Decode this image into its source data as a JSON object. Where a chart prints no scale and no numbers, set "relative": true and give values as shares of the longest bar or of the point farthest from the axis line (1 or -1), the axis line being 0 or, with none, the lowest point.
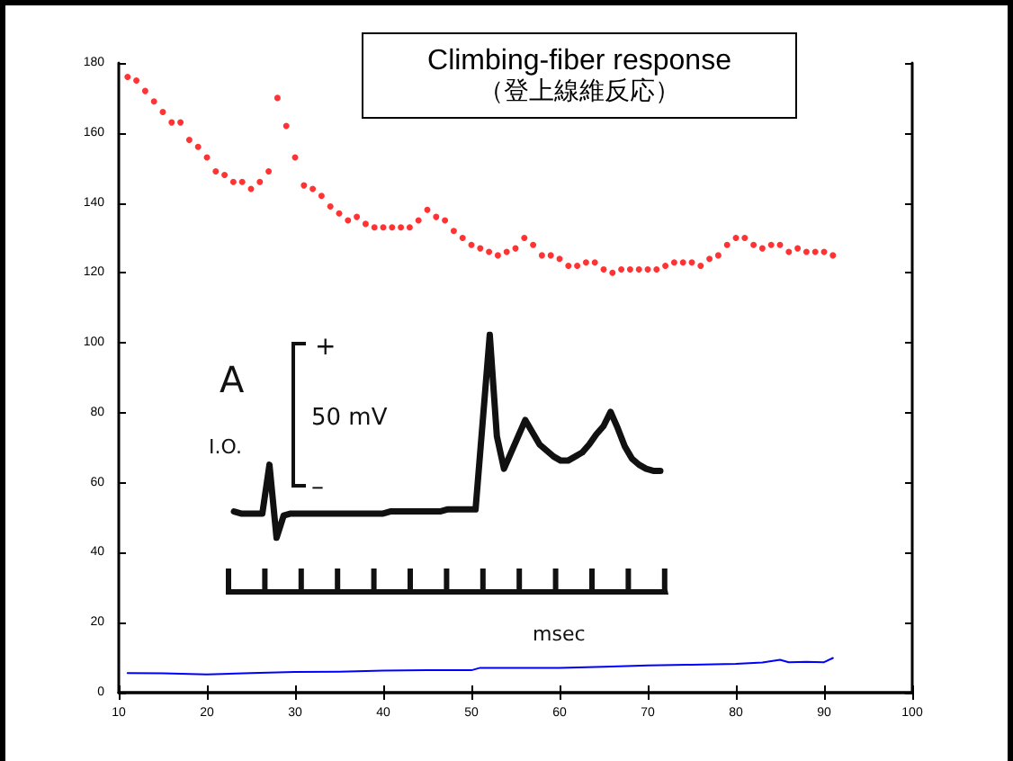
{
  "chart_data": [
    {
      "type": "scatter",
      "title": "Climbing-fiber response",
      "subtitle": "（登上線維反応）",
      "xlim": [
        10,
        100
      ],
      "xticks": [
        10,
        20,
        30,
        40,
        50,
        60,
        70,
        80,
        90,
        100
      ],
      "ylim": [
        0,
        180
      ],
      "yticks": [
        0,
        20,
        40,
        60,
        80,
        100,
        120,
        140,
        160,
        180
      ],
      "grid": false,
      "marker": "circle",
      "series": [
        {
          "color": "#ff0000",
          "x": [
            11,
            12,
            13,
            14,
            15,
            16,
            17,
            18,
            19,
            20,
            21,
            22,
            23,
            24,
            25,
            26,
            27,
            28,
            29,
            30,
            31,
            32,
            33,
            34,
            35,
            36,
            37,
            38,
            39,
            40,
            41,
            42,
            43,
            44,
            45,
            46,
            47,
            48,
            49,
            50,
            51,
            52,
            53,
            54,
            55,
            56,
            57,
            58,
            59,
            60,
            61,
            62,
            63,
            64,
            65,
            66,
            67,
            68,
            69,
            70,
            71,
            72,
            73,
            74,
            75,
            76,
            77,
            78,
            79,
            80,
            81,
            82,
            83,
            84,
            85,
            86,
            87,
            88,
            89,
            90,
            91
          ],
          "values": [
            176,
            175,
            172,
            169,
            166,
            163,
            163,
            158,
            156,
            153,
            149,
            148,
            146,
            146,
            144,
            146,
            149,
            170,
            162,
            153,
            145,
            144,
            142,
            139,
            137,
            135,
            136,
            134,
            133,
            133,
            133,
            133,
            133,
            135,
            138,
            136,
            135,
            132,
            130,
            128,
            127,
            126,
            125,
            126,
            127,
            130,
            128,
            125,
            125,
            124,
            122,
            122,
            123,
            123,
            121,
            120,
            121,
            121,
            121,
            121,
            121,
            122,
            123,
            123,
            123,
            122,
            124,
            125,
            128,
            130,
            130,
            128,
            127,
            128,
            128,
            126,
            127,
            126,
            126,
            126,
            125
          ]
        },
        {
          "type": "line",
          "color": "#0000ff",
          "marker": "none",
          "x": [
            11,
            15,
            20,
            25,
            30,
            35,
            40,
            45,
            50,
            51,
            55,
            60,
            65,
            70,
            75,
            80,
            83,
            85,
            86,
            88,
            90,
            91
          ],
          "values": [
            5.6,
            5.5,
            5.2,
            5.6,
            5.9,
            6.0,
            6.3,
            6.4,
            6.4,
            7.1,
            7.1,
            7.1,
            7.4,
            7.8,
            8.0,
            8.2,
            8.6,
            9.4,
            8.7,
            8.8,
            8.7,
            9.9
          ]
        }
      ]
    },
    {
      "type": "line",
      "relative": true,
      "marker": "none",
      "annotations": [
        "A",
        "I.O.",
        "50 mV",
        "+",
        "–",
        "msec"
      ],
      "categories": [
        null,
        null,
        null,
        null,
        null,
        null,
        null,
        null,
        null,
        null,
        null,
        null,
        null,
        null,
        null,
        null,
        null,
        null,
        null,
        null,
        null,
        null,
        null,
        null,
        null,
        null,
        null,
        null,
        null,
        null,
        null,
        null,
        null,
        null,
        null,
        null,
        null,
        null,
        null,
        null,
        null,
        null,
        null,
        null,
        null,
        null,
        null,
        null,
        null,
        null,
        null,
        null,
        null,
        null,
        null,
        null,
        null,
        null,
        null,
        null,
        null
      ],
      "series": [
        {
          "color": "#111111",
          "values": [
            0.13,
            0.12,
            0.12,
            0.12,
            0.12,
            0.36,
            0,
            0.11,
            0.12,
            0.12,
            0.12,
            0.12,
            0.12,
            0.12,
            0.12,
            0.12,
            0.12,
            0.12,
            0.12,
            0.12,
            0.12,
            0.12,
            0.13,
            0.13,
            0.13,
            0.13,
            0.13,
            0.13,
            0.13,
            0.13,
            0.14,
            0.14,
            0.14,
            0.14,
            0.14,
            0.57,
            1,
            0.5,
            0.34,
            0.42,
            0.5,
            0.58,
            0.52,
            0.46,
            0.43,
            0.4,
            0.38,
            0.38,
            0.4,
            0.42,
            0.46,
            0.51,
            0.55,
            0.62,
            0.54,
            0.45,
            0.39,
            0.36,
            0.34,
            0.33,
            0.33
          ]
        }
      ]
    }
  ]
}
